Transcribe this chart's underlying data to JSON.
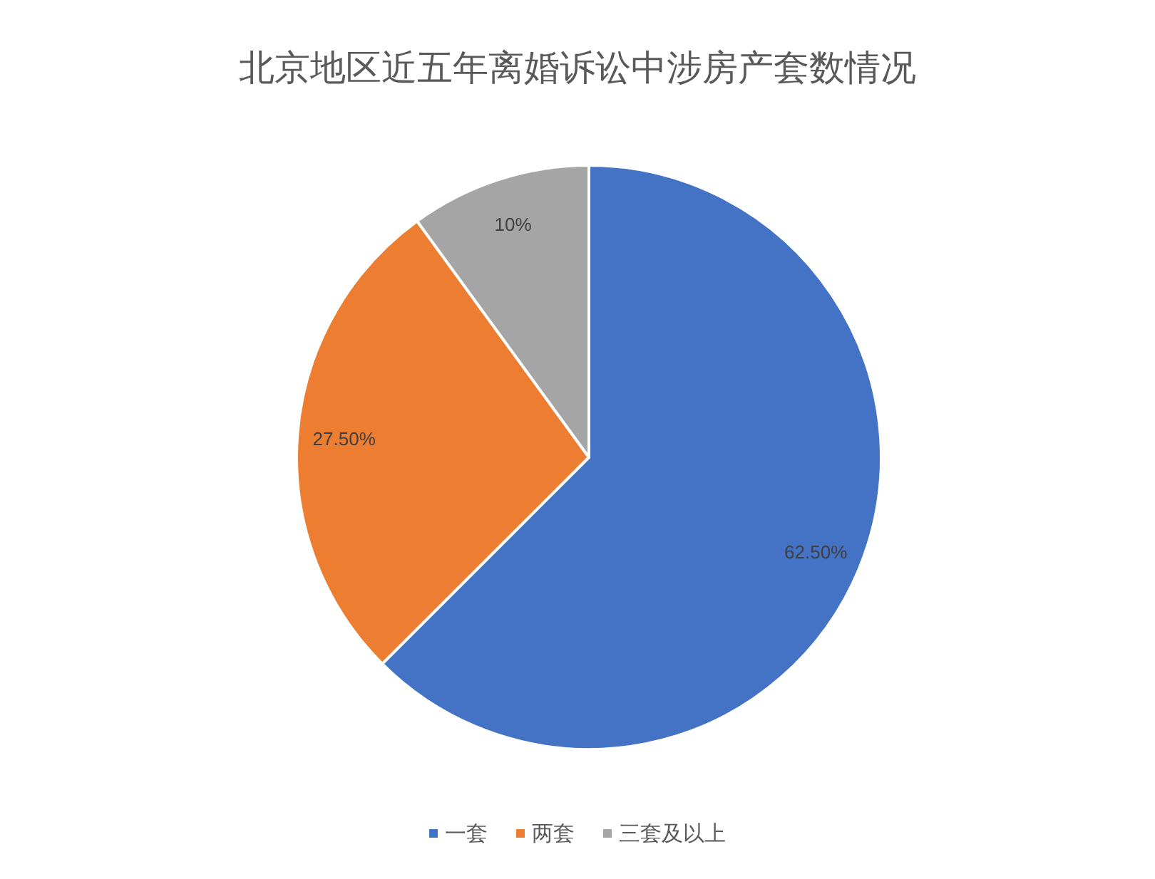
{
  "chart_data": {
    "type": "pie",
    "title": "北京地区近五年离婚诉讼中涉房产套数情况",
    "categories": [
      "一套",
      "两套",
      "三套及以上"
    ],
    "values": [
      62.5,
      27.5,
      10
    ],
    "value_labels": [
      "62.50%",
      "27.50%",
      "10%"
    ],
    "colors": [
      "#4472c4",
      "#ed7d31",
      "#a5a5a5"
    ],
    "legend": "bottom"
  }
}
